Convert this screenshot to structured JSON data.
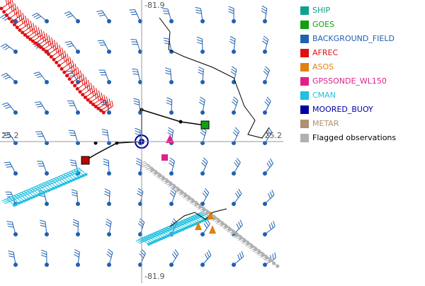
{
  "map": {
    "lon_label_top": "-81.9",
    "lon_label_bottom": "-81.9",
    "lat_label_left": "25.2",
    "lat_label_right": "25.2"
  },
  "legend": {
    "items": [
      {
        "name": "SHIP",
        "color": "#10a090",
        "text_color": "#10a090"
      },
      {
        "name": "GOES",
        "color": "#10a010",
        "text_color": "#10a010"
      },
      {
        "name": "BACKGROUND_FIELD",
        "color": "#2060b0",
        "text_color": "#2060b0"
      },
      {
        "name": "AFREC",
        "color": "#e01010",
        "text_color": "#e01010"
      },
      {
        "name": "ASOS",
        "color": "#e08010",
        "text_color": "#e08010"
      },
      {
        "name": "GPSSONDE_WL150",
        "color": "#e0208a",
        "text_color": "#e0208a"
      },
      {
        "name": "CMAN",
        "color": "#20c0e0",
        "text_color": "#20c0e0"
      },
      {
        "name": "MOORED_BUOY",
        "color": "#0000a0",
        "text_color": "#0000a0"
      },
      {
        "name": "METAR",
        "color": "#b09070",
        "text_color": "#b09070"
      },
      {
        "name": "Flagged observations",
        "color": "#b0b0b0",
        "text_color": "#000000"
      }
    ]
  }
}
